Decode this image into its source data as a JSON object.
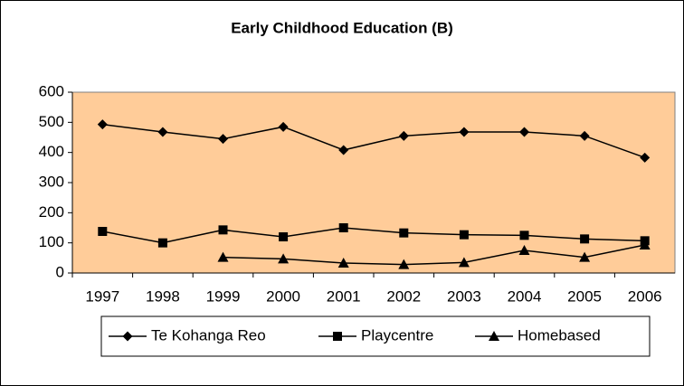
{
  "chart_data": {
    "type": "line",
    "title": "Early Childhood Education (B)",
    "categories": [
      "1997",
      "1998",
      "1999",
      "2000",
      "2001",
      "2002",
      "2003",
      "2004",
      "2005",
      "2006"
    ],
    "series": [
      {
        "name": "Te Kohanga Reo",
        "color": "#000000",
        "marker": "diamond",
        "values": [
          493,
          468,
          445,
          485,
          408,
          455,
          468,
          468,
          455,
          383
        ]
      },
      {
        "name": "Playcentre",
        "color": "#000000",
        "marker": "square",
        "values": [
          138,
          100,
          143,
          120,
          150,
          133,
          127,
          125,
          113,
          107
        ]
      },
      {
        "name": "Homebased",
        "color": "#000000",
        "marker": "triangle",
        "values": [
          null,
          null,
          52,
          47,
          33,
          28,
          35,
          75,
          52,
          93
        ]
      }
    ],
    "ylim": [
      0,
      600
    ],
    "yticks": [
      0,
      100,
      200,
      300,
      400,
      500,
      600
    ],
    "plot_background": "#ffcc99",
    "legend": "bottom"
  }
}
